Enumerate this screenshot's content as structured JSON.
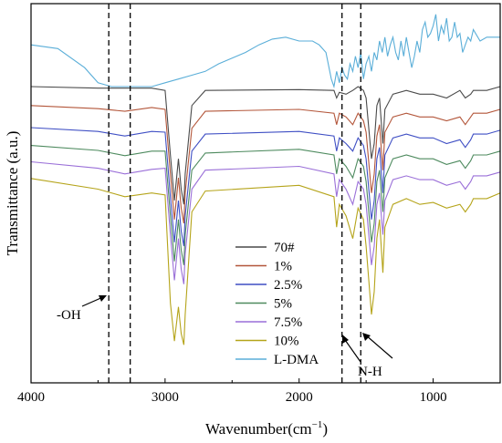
{
  "chart_data": {
    "type": "line",
    "xlabel": "Wavenumber(cm",
    "xlabel_sup": "−1",
    "xlabel_end": ")",
    "ylabel": "Transmittance (a.u.)",
    "xlim": [
      4000,
      500
    ],
    "x_reversed": true,
    "x_ticks": [
      4000,
      3000,
      2000,
      1000
    ],
    "x_tick_labels": [
      "4000",
      "3000",
      "2000",
      "1000"
    ],
    "y_tick_labels": false,
    "grid": false,
    "legend_position": "center-right",
    "series": [
      {
        "name": "70#",
        "color": "#4a4a4a",
        "baseline": 0.87,
        "x": [
          4000,
          3500,
          3100,
          3000,
          2960,
          2930,
          2900,
          2880,
          2860,
          2850,
          2800,
          2700,
          2000,
          1740,
          1720,
          1700,
          1650,
          1600,
          1560,
          1520,
          1500,
          1460,
          1440,
          1420,
          1400,
          1375,
          1360,
          1300,
          1200,
          1100,
          1000,
          900,
          800,
          760,
          720,
          700,
          600,
          500
        ],
        "y": [
          0.87,
          0.866,
          0.866,
          0.86,
          0.69,
          0.57,
          0.68,
          0.6,
          0.56,
          0.64,
          0.82,
          0.86,
          0.862,
          0.86,
          0.84,
          0.855,
          0.85,
          0.86,
          0.87,
          0.86,
          0.84,
          0.68,
          0.72,
          0.82,
          0.84,
          0.72,
          0.81,
          0.85,
          0.86,
          0.85,
          0.85,
          0.84,
          0.86,
          0.84,
          0.85,
          0.86,
          0.86,
          0.87
        ]
      },
      {
        "name": "1%",
        "color": "#b3563a",
        "baseline": 0.82,
        "x": [
          4000,
          3500,
          3300,
          3100,
          3000,
          2960,
          2930,
          2900,
          2880,
          2860,
          2850,
          2800,
          2700,
          2000,
          1740,
          1720,
          1700,
          1650,
          1600,
          1560,
          1520,
          1500,
          1460,
          1440,
          1420,
          1400,
          1375,
          1360,
          1300,
          1200,
          1100,
          1000,
          900,
          800,
          760,
          720,
          700,
          600,
          500
        ],
        "y": [
          0.82,
          0.812,
          0.805,
          0.815,
          0.81,
          0.64,
          0.52,
          0.63,
          0.55,
          0.51,
          0.59,
          0.76,
          0.805,
          0.81,
          0.8,
          0.77,
          0.8,
          0.79,
          0.77,
          0.8,
          0.78,
          0.75,
          0.59,
          0.64,
          0.74,
          0.77,
          0.65,
          0.75,
          0.79,
          0.8,
          0.79,
          0.79,
          0.78,
          0.79,
          0.77,
          0.79,
          0.8,
          0.8,
          0.81
        ]
      },
      {
        "name": "2.5%",
        "color": "#3f4fc4",
        "baseline": 0.762,
        "x": [
          4000,
          3500,
          3300,
          3100,
          3000,
          2960,
          2930,
          2900,
          2880,
          2860,
          2850,
          2800,
          2700,
          2000,
          1740,
          1720,
          1700,
          1650,
          1600,
          1560,
          1520,
          1500,
          1460,
          1440,
          1420,
          1400,
          1375,
          1360,
          1300,
          1200,
          1100,
          1000,
          900,
          800,
          760,
          720,
          700,
          600,
          500
        ],
        "y": [
          0.762,
          0.752,
          0.74,
          0.752,
          0.75,
          0.58,
          0.46,
          0.57,
          0.49,
          0.45,
          0.53,
          0.7,
          0.745,
          0.752,
          0.74,
          0.7,
          0.735,
          0.72,
          0.7,
          0.735,
          0.715,
          0.68,
          0.52,
          0.57,
          0.68,
          0.71,
          0.59,
          0.69,
          0.735,
          0.745,
          0.735,
          0.735,
          0.72,
          0.73,
          0.71,
          0.73,
          0.745,
          0.745,
          0.755
        ]
      },
      {
        "name": "5%",
        "color": "#4d8a5e",
        "baseline": 0.715,
        "x": [
          4000,
          3500,
          3300,
          3100,
          3000,
          2960,
          2930,
          2900,
          2880,
          2860,
          2850,
          2800,
          2700,
          2000,
          1740,
          1720,
          1700,
          1650,
          1600,
          1560,
          1520,
          1500,
          1460,
          1440,
          1420,
          1400,
          1375,
          1360,
          1300,
          1200,
          1100,
          1000,
          900,
          800,
          760,
          720,
          700,
          600,
          500
        ],
        "y": [
          0.715,
          0.702,
          0.688,
          0.7,
          0.7,
          0.53,
          0.41,
          0.52,
          0.44,
          0.4,
          0.48,
          0.65,
          0.695,
          0.705,
          0.69,
          0.64,
          0.68,
          0.66,
          0.63,
          0.68,
          0.66,
          0.62,
          0.46,
          0.51,
          0.62,
          0.65,
          0.54,
          0.63,
          0.68,
          0.69,
          0.68,
          0.68,
          0.665,
          0.675,
          0.655,
          0.675,
          0.69,
          0.69,
          0.7
        ]
      },
      {
        "name": "7.5%",
        "color": "#9a6fd8",
        "baseline": 0.672,
        "x": [
          4000,
          3500,
          3300,
          3100,
          3000,
          2960,
          2930,
          2900,
          2880,
          2860,
          2850,
          2800,
          2700,
          2000,
          1740,
          1720,
          1700,
          1650,
          1600,
          1560,
          1520,
          1500,
          1460,
          1440,
          1420,
          1400,
          1375,
          1360,
          1300,
          1200,
          1100,
          1000,
          900,
          800,
          760,
          720,
          700,
          600,
          500
        ],
        "y": [
          0.672,
          0.655,
          0.64,
          0.652,
          0.655,
          0.48,
          0.36,
          0.47,
          0.39,
          0.35,
          0.43,
          0.6,
          0.65,
          0.66,
          0.64,
          0.58,
          0.625,
          0.6,
          0.56,
          0.62,
          0.6,
          0.56,
          0.4,
          0.45,
          0.56,
          0.59,
          0.48,
          0.57,
          0.625,
          0.635,
          0.625,
          0.625,
          0.61,
          0.62,
          0.6,
          0.62,
          0.635,
          0.635,
          0.645
        ]
      },
      {
        "name": "10%",
        "color": "#b5a41a",
        "baseline": 0.628,
        "x": [
          4000,
          3500,
          3300,
          3100,
          3000,
          2960,
          2930,
          2900,
          2880,
          2860,
          2850,
          2800,
          2700,
          2000,
          1740,
          1720,
          1700,
          1650,
          1600,
          1560,
          1520,
          1500,
          1460,
          1440,
          1420,
          1400,
          1375,
          1360,
          1300,
          1200,
          1100,
          1000,
          900,
          800,
          760,
          720,
          700,
          600,
          500
        ],
        "y": [
          0.628,
          0.6,
          0.58,
          0.59,
          0.585,
          0.3,
          0.2,
          0.29,
          0.22,
          0.19,
          0.27,
          0.54,
          0.595,
          0.61,
          0.58,
          0.5,
          0.56,
          0.53,
          0.47,
          0.55,
          0.52,
          0.45,
          0.27,
          0.33,
          0.47,
          0.52,
          0.38,
          0.5,
          0.56,
          0.575,
          0.56,
          0.565,
          0.55,
          0.56,
          0.54,
          0.56,
          0.575,
          0.575,
          0.59
        ]
      },
      {
        "name": "L-DMA",
        "color": "#5aaed8",
        "baseline": 0.98,
        "x": [
          4000,
          3800,
          3600,
          3500,
          3400,
          3300,
          3200,
          3100,
          3000,
          2900,
          2800,
          2700,
          2600,
          2500,
          2400,
          2300,
          2200,
          2100,
          2000,
          1900,
          1850,
          1800,
          1760,
          1740,
          1720,
          1700,
          1680,
          1660,
          1640,
          1620,
          1600,
          1580,
          1560,
          1540,
          1520,
          1500,
          1480,
          1460,
          1440,
          1420,
          1400,
          1380,
          1360,
          1340,
          1320,
          1300,
          1280,
          1260,
          1240,
          1220,
          1200,
          1180,
          1160,
          1140,
          1120,
          1100,
          1080,
          1060,
          1040,
          1020,
          1000,
          980,
          960,
          940,
          920,
          900,
          880,
          860,
          840,
          820,
          800,
          780,
          760,
          740,
          720,
          700,
          650,
          600,
          550,
          500
        ],
        "y": [
          0.98,
          0.97,
          0.92,
          0.88,
          0.87,
          0.87,
          0.87,
          0.87,
          0.88,
          0.89,
          0.9,
          0.91,
          0.93,
          0.945,
          0.96,
          0.98,
          0.995,
          1.0,
          0.99,
          0.99,
          0.98,
          0.96,
          0.89,
          0.87,
          0.91,
          0.88,
          0.92,
          0.9,
          0.89,
          0.93,
          0.91,
          0.95,
          0.92,
          0.96,
          0.89,
          0.93,
          0.95,
          0.91,
          0.96,
          0.94,
          0.99,
          0.96,
          1.0,
          0.95,
          0.98,
          1.0,
          0.96,
          0.94,
          0.99,
          0.95,
          1.0,
          0.96,
          0.92,
          0.95,
          0.99,
          0.96,
          1.02,
          1.04,
          1.0,
          1.01,
          1.03,
          1.06,
          0.99,
          1.03,
          1.01,
          1.05,
          0.99,
          1.0,
          1.04,
          1.0,
          1.01,
          0.96,
          0.98,
          1.0,
          0.99,
          1.02,
          0.99,
          1.0,
          1.0,
          1.0
        ]
      }
    ],
    "vlines_dashed": [
      3420,
      3260,
      1680,
      1540
    ],
    "annotations": [
      {
        "text": "-OH"
      },
      {
        "text": "N-H"
      }
    ]
  }
}
